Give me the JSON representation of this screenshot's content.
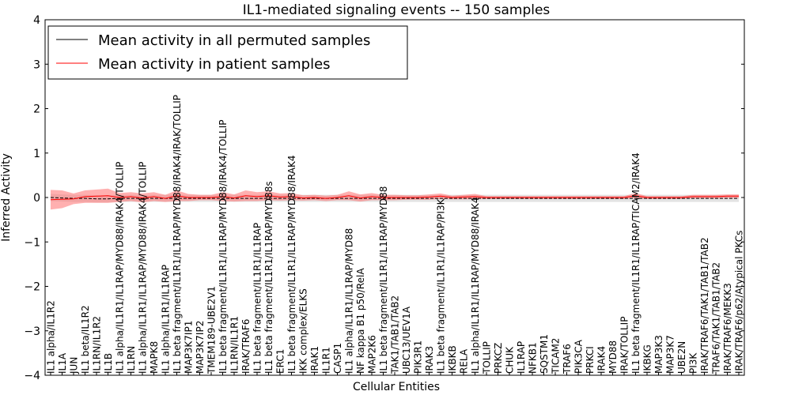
{
  "chart_data": {
    "type": "line",
    "title": "IL1-mediated signaling events -- 150 samples",
    "xlabel": "Cellular Entities",
    "ylabel": "Inferred Activity",
    "ylim": [
      -4,
      4
    ],
    "yticks": [
      4,
      3,
      2,
      1,
      0,
      -1,
      -2,
      -3,
      -4
    ],
    "ytick_labels": [
      "4",
      "3",
      "2",
      "1",
      "0",
      "−1",
      "−2",
      "−3",
      "−4"
    ],
    "grid": false,
    "legend_position": "top-left",
    "categories": [
      "IL1 alpha/IL1R2",
      "IL1A",
      "JUN",
      "IL1 beta/IL1R2",
      "IL1RN/IL1R2",
      "IL1B",
      "IL1 alpha/IL1R1/IL1RAP/MYD88/IRAK4/TOLLIP",
      "IL1RN",
      "IL1 alpha/IL1R1/IL1RAP/MYD88/IRAK4/TOLLIP",
      "MAPK8",
      "IL1 alpha/IL1R1/IL1RAP",
      "IL1 beta fragment/IL1R1/IL1RAP/MYD88/IRAK4/IRAK/TOLLIP",
      "MAP3K7IP1",
      "MAP3K7IP2",
      "TMEM189-UBE2V1",
      "IL1 beta fragment/IL1R1/IL1RAP/MYD88/IRAK4/TOLLIP",
      "IL1RN/IL1R1",
      "IRAK/TRAF6",
      "IL1 beta fragment/IL1R1/IL1RAP",
      "IL1 beta fragment/IL1R1/IL1RAP/MYD88s",
      "ERC1",
      "IL1 beta fragment/IL1R1/IL1RAP/MYD88/IRAK4",
      "IKK complex/ELKS",
      "IRAK1",
      "IL1R1",
      "CASP1",
      "IL1 alpha/IL1R1/IL1RAP/MYD88",
      "NF kappa B1 p50/RelA",
      "MAP2K6",
      "IL1 beta fragment/IL1R1/IL1RAP/MYD88",
      "TAK1/TAB1/TAB2",
      "UBC13/UEV1A",
      "PIK3R1",
      "IRAK3",
      "IL1 beta fragment/IL1R1/IL1RAP/PI3K",
      "IKBKB",
      "RELA",
      "IL1 alpha/IL1R1/IL1RAP/MYD88/IRAK4",
      "TOLLIP",
      "PRKCZ",
      "CHUK",
      "IL1RAP",
      "NFKB1",
      "SQSTM1",
      "TICAM2",
      "TRAF6",
      "PIK3CA",
      "PRKCI",
      "IRAK4",
      "MYD88",
      "IRAK/TOLLIP",
      "IL1 beta fragment/IL1R1/IL1RAP/TICAM2/IRAK4",
      "IKBKG",
      "MAP3K3",
      "MAP3K7",
      "UBE2N",
      "PI3K",
      "IRAK/TRAF6/TAK1/TAB1/TAB2",
      "TRAF6/TAK1/TAB1/TAB2",
      "IRAK/TRAF6/MEKK3",
      "IRAK/TRAF6/p62/Atypical PKCs"
    ],
    "series": [
      {
        "name": "Mean activity in all permuted samples",
        "color": "#000000",
        "values": [
          0.0,
          -0.01,
          -0.02,
          -0.02,
          -0.03,
          -0.03,
          -0.02,
          -0.02,
          -0.02,
          -0.02,
          -0.02,
          -0.02,
          -0.02,
          -0.02,
          -0.02,
          -0.02,
          -0.02,
          -0.02,
          -0.02,
          -0.02,
          -0.02,
          -0.02,
          -0.02,
          -0.02,
          -0.02,
          -0.02,
          -0.02,
          -0.02,
          -0.02,
          -0.02,
          -0.02,
          -0.02,
          -0.02,
          -0.02,
          -0.02,
          -0.02,
          -0.02,
          -0.02,
          -0.02,
          -0.02,
          -0.02,
          -0.02,
          -0.02,
          -0.02,
          -0.02,
          -0.02,
          -0.02,
          -0.02,
          -0.02,
          -0.02,
          -0.02,
          -0.02,
          -0.02,
          -0.02,
          -0.02,
          -0.02,
          -0.02,
          -0.02,
          -0.02,
          -0.02,
          -0.02
        ],
        "band": [
          0.08,
          0.08,
          0.08,
          0.08,
          0.08,
          0.08,
          0.08,
          0.08,
          0.08,
          0.08,
          0.08,
          0.08,
          0.08,
          0.08,
          0.08,
          0.08,
          0.08,
          0.08,
          0.08,
          0.08,
          0.08,
          0.08,
          0.08,
          0.08,
          0.08,
          0.08,
          0.08,
          0.08,
          0.08,
          0.08,
          0.08,
          0.08,
          0.08,
          0.08,
          0.08,
          0.08,
          0.08,
          0.08,
          0.08,
          0.08,
          0.08,
          0.08,
          0.08,
          0.08,
          0.08,
          0.08,
          0.08,
          0.08,
          0.08,
          0.08,
          0.08,
          0.08,
          0.08,
          0.08,
          0.08,
          0.08,
          0.08,
          0.08,
          0.08,
          0.08,
          0.08
        ]
      },
      {
        "name": "Mean activity in patient samples",
        "color": "#ff0000",
        "values": [
          -0.05,
          -0.04,
          -0.03,
          0.02,
          0.03,
          0.04,
          0.0,
          0.02,
          -0.01,
          0.02,
          -0.02,
          0.04,
          0.0,
          0.0,
          0.0,
          0.02,
          -0.01,
          0.04,
          0.02,
          0.04,
          0.01,
          0.02,
          -0.01,
          0.0,
          -0.02,
          0.0,
          0.04,
          -0.01,
          0.02,
          0.0,
          0.0,
          0.0,
          0.0,
          0.01,
          0.03,
          0.0,
          0.01,
          0.02,
          0.0,
          0.0,
          0.0,
          0.0,
          0.0,
          0.0,
          0.0,
          0.0,
          0.0,
          0.0,
          0.0,
          0.0,
          0.0,
          0.04,
          0.0,
          0.0,
          0.0,
          0.0,
          0.02,
          0.02,
          0.02,
          0.03,
          0.03
        ],
        "band": [
          0.22,
          0.2,
          0.12,
          0.14,
          0.15,
          0.16,
          0.1,
          0.1,
          0.1,
          0.1,
          0.08,
          0.12,
          0.08,
          0.06,
          0.06,
          0.1,
          0.08,
          0.12,
          0.1,
          0.1,
          0.08,
          0.08,
          0.06,
          0.06,
          0.06,
          0.06,
          0.1,
          0.08,
          0.08,
          0.06,
          0.06,
          0.05,
          0.05,
          0.06,
          0.06,
          0.04,
          0.05,
          0.06,
          0.03,
          0.03,
          0.03,
          0.03,
          0.03,
          0.03,
          0.03,
          0.03,
          0.03,
          0.03,
          0.03,
          0.03,
          0.03,
          0.06,
          0.03,
          0.03,
          0.03,
          0.03,
          0.04,
          0.04,
          0.04,
          0.04,
          0.04
        ]
      }
    ]
  }
}
